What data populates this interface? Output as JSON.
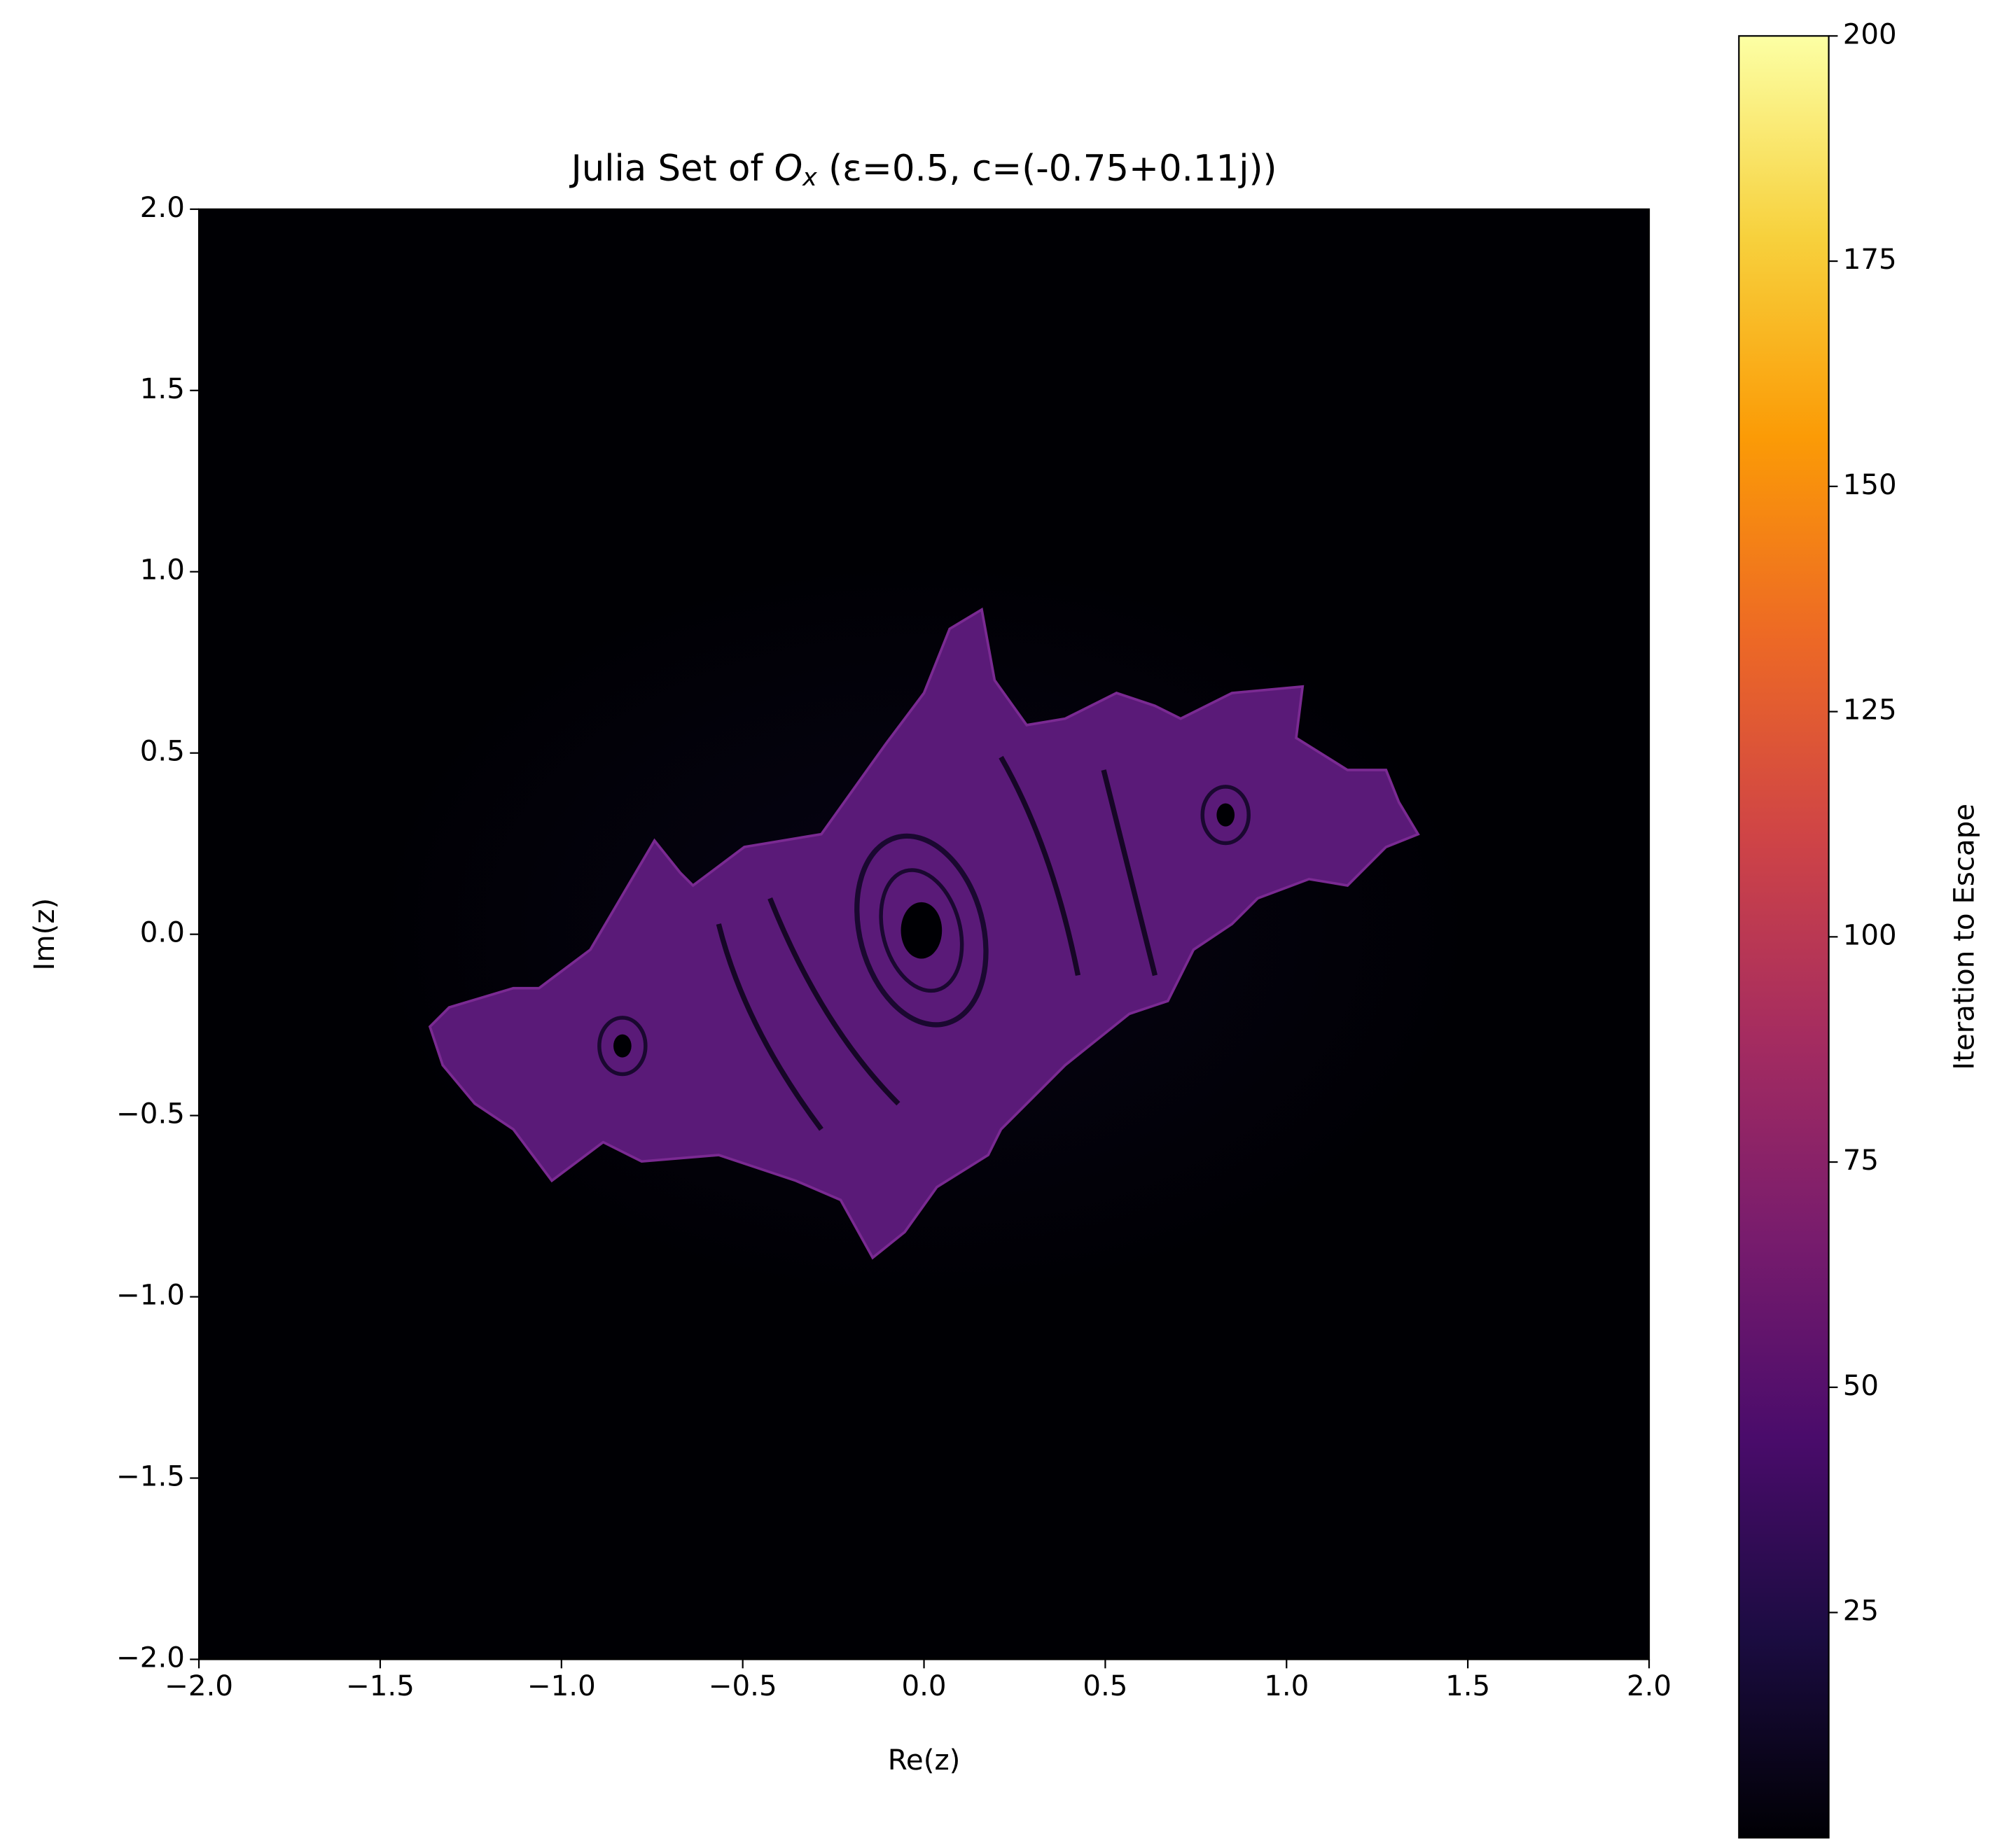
{
  "chart_data": {
    "type": "image",
    "title_parts": [
      "Julia Set of ",
      "O",
      "x",
      " (ε=0.5, c=(-0.75+0.11j))"
    ],
    "x_label": "Re(z)",
    "y_label": "Im(z)",
    "xlim": [
      -2,
      2
    ],
    "ylim": [
      -2,
      2
    ],
    "xticks": [
      {
        "value": -2,
        "label": "−2.0"
      },
      {
        "value": -1.5,
        "label": "−1.5"
      },
      {
        "value": -1,
        "label": "−1.0"
      },
      {
        "value": -0.5,
        "label": "−0.5"
      },
      {
        "value": 0,
        "label": "0.0"
      },
      0.5,
      {
        "value": 1,
        "label": "1.0"
      },
      1.5,
      {
        "value": 2,
        "label": "2.0"
      }
    ],
    "yticks": [
      {
        "value": -2,
        "label": "−2.0"
      },
      {
        "value": -1.5,
        "label": "−1.5"
      },
      {
        "value": -1,
        "label": "−1.0"
      },
      {
        "value": -0.5,
        "label": "−0.5"
      },
      {
        "value": 0,
        "label": "0.0"
      },
      0.5,
      {
        "value": 1,
        "label": "1.0"
      },
      1.5,
      {
        "value": 2,
        "label": "2.0"
      }
    ],
    "colormap": "inferno",
    "colorbar_label": "Iteration to Escape",
    "clim": [
      0,
      200
    ],
    "cticks": [
      25,
      50,
      75,
      100,
      125,
      150,
      175,
      200
    ]
  }
}
